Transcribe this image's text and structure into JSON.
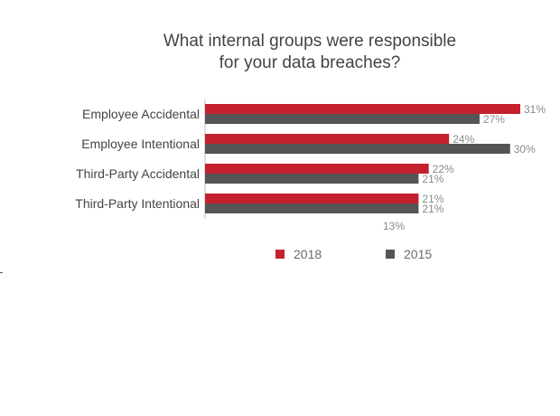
{
  "chart_data": {
    "type": "bar",
    "orientation": "horizontal",
    "title_lines": [
      "What internal groups were responsible",
      "for your data breaches?"
    ],
    "categories": [
      "Employee Accidental",
      "Employee Intentional",
      "Third-Party Accidental",
      "Third-Party Intentional"
    ],
    "series": [
      {
        "name": "2018",
        "values": [
          31,
          24,
          22,
          21
        ],
        "labels": [
          "31%",
          "24%",
          "22%",
          "21%"
        ],
        "color": "#c4202e"
      },
      {
        "name": "2015",
        "values": [
          27,
          30,
          21,
          21
        ],
        "labels": [
          "27%",
          "30%",
          "21%",
          "21%"
        ],
        "color": "#555555"
      }
    ],
    "extra_label": "13%",
    "xlim": [
      0,
      36
    ],
    "grid": false,
    "legend_position": "bottom"
  }
}
